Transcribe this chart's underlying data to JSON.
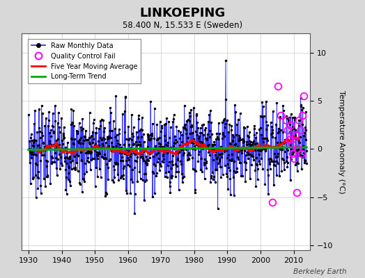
{
  "title": "LINKOEPING",
  "subtitle": "58.400 N, 15.533 E (Sweden)",
  "ylabel": "Temperature Anomaly (°C)",
  "watermark": "Berkeley Earth",
  "xlim": [
    1928,
    2015
  ],
  "ylim": [
    -10.5,
    12
  ],
  "yticks": [
    -10,
    -5,
    0,
    5,
    10
  ],
  "xticks": [
    1930,
    1940,
    1950,
    1960,
    1970,
    1980,
    1990,
    2000,
    2010
  ],
  "start_year": 1930,
  "end_year": 2013,
  "raw_color": "#3333FF",
  "raw_dot_color": "#000000",
  "ma_color": "#FF0000",
  "trend_color": "#00AA00",
  "qc_fail_color": "#FF00FF",
  "background_color": "#D8D8D8",
  "plot_bg_color": "#FFFFFF",
  "grid_color": "#BBBBBB"
}
